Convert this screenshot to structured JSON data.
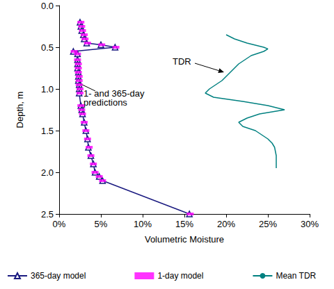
{
  "chart_data": {
    "type": "line",
    "x_label": "Volumetric Moisture",
    "y_label": "Depth, m",
    "xlim": [
      0,
      30
    ],
    "xticks": [
      {
        "value": 0,
        "label": "0%"
      },
      {
        "value": 5,
        "label": "5%"
      },
      {
        "value": 10,
        "label": "10%"
      },
      {
        "value": 15,
        "label": "15%"
      },
      {
        "value": 20,
        "label": "20%"
      },
      {
        "value": 25,
        "label": "25%"
      },
      {
        "value": 30,
        "label": "30%"
      }
    ],
    "ylim": [
      0,
      2.5
    ],
    "yticks": [
      {
        "value": 0,
        "label": "0.0"
      },
      {
        "value": 0.5,
        "label": "0.5"
      },
      {
        "value": 1,
        "label": "1.0"
      },
      {
        "value": 1.5,
        "label": "1.5"
      },
      {
        "value": 2,
        "label": "2.0"
      },
      {
        "value": 2.5,
        "label": "2.5"
      }
    ],
    "log": false,
    "grid": false,
    "legend": "bottom",
    "annotations": [
      {
        "text": "TDR"
      },
      {
        "text": "1- and 365-day predictions"
      }
    ],
    "series": [
      {
        "name": "365-day model",
        "type": "line",
        "color": "#1a1a80",
        "marker": "triangle",
        "line_style": "solid",
        "x": [
          2.5,
          2.6,
          2.7,
          2.9,
          3.0,
          3.3,
          5.0,
          6.7,
          1.7,
          2.2,
          2.2,
          2.2,
          2.2,
          2.3,
          2.3,
          2.3,
          2.4,
          2.4,
          2.4,
          2.6,
          2.7,
          2.8,
          3.0,
          3.2,
          3.4,
          3.5,
          3.8,
          4.1,
          4.3,
          4.8,
          5.2,
          15.6
        ],
        "y": [
          0.2,
          0.25,
          0.3,
          0.35,
          0.4,
          0.45,
          0.47,
          0.5,
          0.55,
          0.58,
          0.65,
          0.7,
          0.75,
          0.8,
          0.85,
          0.9,
          0.95,
          1.0,
          1.05,
          1.2,
          1.25,
          1.3,
          1.4,
          1.5,
          1.6,
          1.7,
          1.8,
          1.9,
          2.0,
          2.05,
          2.1,
          2.5
        ]
      },
      {
        "name": "1-day model",
        "type": "scatter",
        "color": "#ff00ff",
        "marker": "rect",
        "line_style": "none",
        "x": [
          2.6,
          2.7,
          2.8,
          3.0,
          3.1,
          3.4,
          5.1,
          6.8,
          1.8,
          2.2,
          2.2,
          2.3,
          2.3,
          2.3,
          2.4,
          2.4,
          2.4,
          2.5,
          2.5,
          2.6,
          2.7,
          2.8,
          3.0,
          3.2,
          3.4,
          3.6,
          3.8,
          4.1,
          4.3,
          4.8,
          5.2,
          15.7
        ],
        "y": [
          0.2,
          0.25,
          0.3,
          0.35,
          0.4,
          0.45,
          0.47,
          0.5,
          0.55,
          0.58,
          0.65,
          0.7,
          0.75,
          0.8,
          0.85,
          0.9,
          0.95,
          1.0,
          1.05,
          1.2,
          1.25,
          1.3,
          1.4,
          1.5,
          1.6,
          1.7,
          1.8,
          1.9,
          2.0,
          2.05,
          2.1,
          2.5
        ]
      },
      {
        "name": "Mean TDR",
        "type": "line",
        "color": "#008080",
        "marker": "none",
        "line_style": "solid",
        "x": [
          20.0,
          21.0,
          22.5,
          24.5,
          25.0,
          24.5,
          23.0,
          21.5,
          20.5,
          19.5,
          18.0,
          17.5,
          18.5,
          22.0,
          25.0,
          27.0,
          24.0,
          22.5,
          21.5,
          22.0,
          23.5,
          25.0,
          25.5,
          25.8,
          26.0,
          26.0
        ],
        "y": [
          0.35,
          0.4,
          0.45,
          0.5,
          0.52,
          0.55,
          0.6,
          0.7,
          0.8,
          0.9,
          1.0,
          1.05,
          1.1,
          1.15,
          1.2,
          1.25,
          1.3,
          1.35,
          1.4,
          1.45,
          1.5,
          1.6,
          1.65,
          1.7,
          1.8,
          1.95
        ]
      }
    ]
  }
}
